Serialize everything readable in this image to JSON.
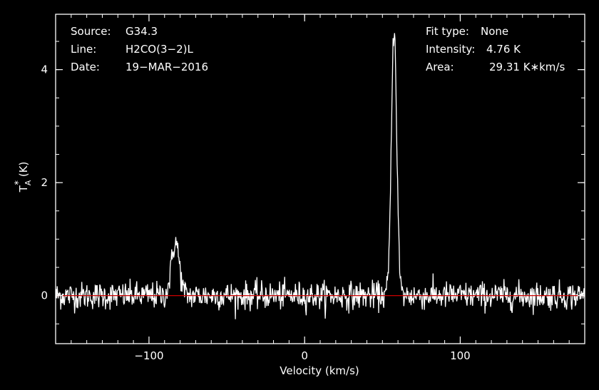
{
  "chart_data": {
    "type": "line",
    "title": "",
    "xlabel": "Velocity (km/s)",
    "ylabel": {
      "symbol": "T",
      "superscript": "*",
      "subscript": "A",
      "unit": "(K)"
    },
    "xlim": [
      -160,
      180
    ],
    "ylim": [
      -0.85,
      4.98
    ],
    "x_ticks": [
      {
        "value": -100,
        "label": "−100"
      },
      {
        "value": 0,
        "label": "0"
      },
      {
        "value": 100,
        "label": "100"
      }
    ],
    "y_ticks": [
      {
        "value": 0,
        "label": "0"
      },
      {
        "value": 2,
        "label": "2"
      },
      {
        "value": 4,
        "label": "4"
      }
    ],
    "x_minor_step": 10,
    "y_minor_step": 0.5,
    "grid": false,
    "baseline": 0,
    "colors": {
      "background": "#000000",
      "frame": "#ffffff",
      "spectrum": "#ffffff",
      "baseline": "#cc0000"
    },
    "series": [
      {
        "peaks": [
          {
            "center": 57.5,
            "amplitude": 4.76,
            "sigma": 1.7
          },
          {
            "center": -83,
            "amplitude": 0.95,
            "sigma": 2.5
          }
        ],
        "noise_rms": 0.12,
        "channel_width": 0.33
      }
    ],
    "annotations": {
      "left": [
        {
          "label": "Source:",
          "value": "G34.3"
        },
        {
          "label": "Line:",
          "value": "H2CO(3−2)L"
        },
        {
          "label": "Date:",
          "value": "19−MAR−2016"
        }
      ],
      "right": [
        {
          "label": "Fit type:",
          "value": "None"
        },
        {
          "label": "Intensity:",
          "value": "4.76 K"
        },
        {
          "label": "Area:",
          "value": "29.31 K∗km/s"
        }
      ]
    }
  }
}
